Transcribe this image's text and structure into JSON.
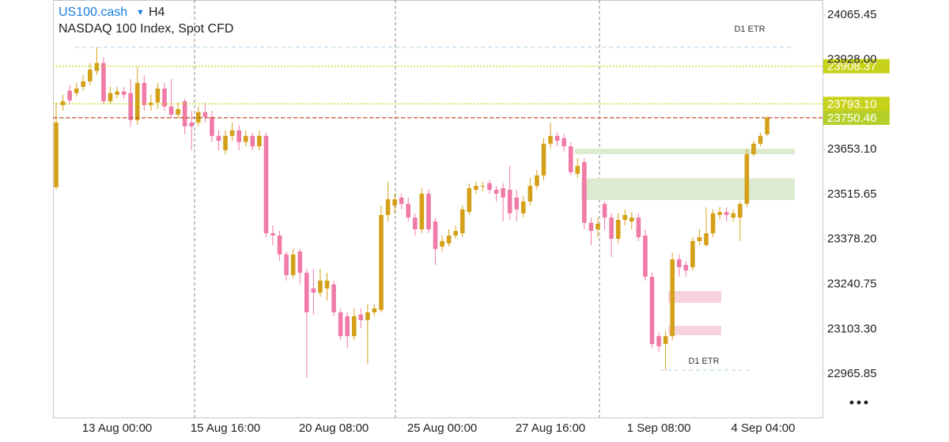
{
  "chart_data": {
    "type": "candlestick",
    "title": "US100.cash",
    "timeframe": "H4",
    "subtitle": "NASDAQ 100 Index, Spot CFD",
    "up_color": "#d4a017",
    "down_color": "#f07aa8",
    "ylim": [
      22833,
      24111
    ],
    "yticks": [
      {
        "value": 24065.45,
        "label": "24065.45"
      },
      {
        "value": 23928,
        "label": "23928.00"
      },
      {
        "value": 23653.1,
        "label": "23653.10"
      },
      23515.65,
      {
        "value": 23378.2,
        "label": "23378.20"
      },
      23240.75,
      {
        "value": 23103.3,
        "label": "23103.30"
      },
      22965.85
    ],
    "categories": [
      null,
      null,
      null,
      null,
      null,
      null,
      null,
      null,
      null,
      "13 Aug 00:00",
      null,
      null,
      null,
      null,
      null,
      null,
      null,
      null,
      null,
      null,
      null,
      null,
      null,
      null,
      null,
      "15 Aug 16:00",
      null,
      null,
      null,
      null,
      null,
      null,
      null,
      null,
      null,
      null,
      null,
      null,
      null,
      null,
      null,
      "20 Aug 08:00",
      null,
      null,
      null,
      null,
      null,
      null,
      null,
      null,
      null,
      null,
      null,
      null,
      null,
      null,
      null,
      "25 Aug 00:00",
      null,
      null,
      null,
      null,
      null,
      null,
      null,
      null,
      null,
      null,
      null,
      null,
      null,
      null,
      null,
      "27 Aug 16:00",
      null,
      null,
      null,
      null,
      null,
      null,
      null,
      null,
      null,
      null,
      null,
      null,
      null,
      null,
      null,
      "1 Sep 08:00",
      null,
      null,
      null,
      null,
      null,
      null,
      null,
      null,
      null,
      null,
      null,
      null,
      null,
      null,
      null,
      "4 Sep 04:00"
    ],
    "open": [
      23538,
      23789,
      23833,
      23826,
      23845,
      23862,
      23894,
      23918,
      23801,
      23821,
      23831,
      23826,
      23743,
      23857,
      23789,
      23797,
      23840,
      23785,
      23760,
      23801,
      23736,
      23736,
      23768,
      23753,
      23695,
      23651,
      23695,
      23712,
      23676,
      23695,
      23663,
      23695,
      23397,
      23390,
      23332,
      23269,
      23341,
      23276,
      23228,
      23215,
      23228,
      23240,
      23155,
      23143,
      23082,
      23148,
      23131,
      23155,
      23162,
      23453,
      23482,
      23506,
      23487,
      23445,
      23409,
      23518,
      23433,
      23356,
      23366,
      23390,
      23397,
      23462,
      23530,
      23540,
      23550,
      23530,
      23535,
      23530,
      23506,
      23458,
      23494,
      23542,
      23574,
      23671,
      23695,
      23688,
      23663,
      23579,
      23615,
      23429,
      23409,
      23487,
      23445,
      23380,
      23438,
      23433,
      23445,
      23390,
      23264,
      23082,
      23058,
      23082,
      23317,
      23300,
      23293,
      23373,
      23361,
      23397,
      23453,
      23462,
      23445,
      23445,
      23487,
      23639,
      23671,
      23700
    ],
    "high": [
      23797,
      23821,
      23850,
      23857,
      23881,
      23918,
      23966,
      23937,
      23845,
      23845,
      23845,
      23869,
      23906,
      23881,
      23821,
      23857,
      23857,
      23869,
      23797,
      23809,
      23772,
      23785,
      23797,
      23772,
      23712,
      23712,
      23736,
      23729,
      23712,
      23705,
      23712,
      23705,
      23421,
      23404,
      23341,
      23349,
      23349,
      23288,
      23288,
      23288,
      23276,
      23252,
      23167,
      23155,
      23167,
      23167,
      23179,
      23179,
      23482,
      23554,
      23518,
      23518,
      23506,
      23458,
      23535,
      23530,
      23445,
      23390,
      23409,
      23421,
      23482,
      23550,
      23554,
      23554,
      23559,
      23542,
      23550,
      23603,
      23530,
      23511,
      23567,
      23591,
      23688,
      23736,
      23705,
      23700,
      23676,
      23627,
      23627,
      23445,
      23445,
      23494,
      23458,
      23458,
      23470,
      23462,
      23458,
      23409,
      23276,
      23094,
      23099,
      23336,
      23332,
      23312,
      23385,
      23409,
      23477,
      23470,
      23477,
      23477,
      23470,
      23494,
      23656,
      23680,
      23705,
      23756
    ],
    "low": [
      23530,
      23772,
      23792,
      23816,
      23833,
      23850,
      23881,
      23792,
      23792,
      23809,
      23809,
      23724,
      23729,
      23772,
      23772,
      23777,
      23772,
      23748,
      23748,
      23700,
      23651,
      23724,
      23736,
      23676,
      23651,
      23639,
      23680,
      23651,
      23663,
      23651,
      23651,
      23385,
      23361,
      23312,
      23252,
      23259,
      23240,
      22954,
      23148,
      23203,
      23191,
      23143,
      23070,
      23046,
      23070,
      23106,
      22997,
      23143,
      23155,
      23433,
      23458,
      23470,
      23433,
      23390,
      23397,
      23397,
      23300,
      23341,
      23356,
      23380,
      23385,
      23453,
      23518,
      23525,
      23518,
      23494,
      23433,
      23438,
      23433,
      23445,
      23482,
      23530,
      23559,
      23656,
      23663,
      23647,
      23574,
      23567,
      23409,
      23361,
      23385,
      23409,
      23324,
      23366,
      23421,
      23409,
      23373,
      23252,
      23046,
      23034,
      22978,
      23070,
      23264,
      23264,
      23283,
      23361,
      23356,
      23385,
      23438,
      23433,
      23433,
      23373,
      23477,
      23632,
      23663,
      23695
    ],
    "close": [
      23736,
      23801,
      23804,
      23840,
      23862,
      23898,
      23918,
      23801,
      23826,
      23831,
      23821,
      23743,
      23857,
      23789,
      23797,
      23840,
      23785,
      23760,
      23777,
      23724,
      23724,
      23768,
      23753,
      23695,
      23680,
      23695,
      23712,
      23676,
      23695,
      23663,
      23695,
      23397,
      23390,
      23332,
      23269,
      23332,
      23276,
      23155,
      23215,
      23252,
      23252,
      23155,
      23082,
      23082,
      23143,
      23131,
      23155,
      23167,
      23453,
      23501,
      23501,
      23487,
      23445,
      23409,
      23518,
      23409,
      23349,
      23373,
      23390,
      23404,
      23470,
      23535,
      23542,
      23542,
      23530,
      23518,
      23506,
      23458,
      23470,
      23494,
      23542,
      23574,
      23671,
      23695,
      23680,
      23663,
      23584,
      23603,
      23429,
      23404,
      23426,
      23445,
      23380,
      23438,
      23453,
      23445,
      23385,
      23264,
      23058,
      23051,
      23082,
      23317,
      23293,
      23283,
      23373,
      23385,
      23397,
      23458,
      23462,
      23453,
      23458,
      23487,
      23639,
      23671,
      23695,
      23750
    ],
    "levels": [
      {
        "value": 23908.37,
        "color": "#c9d21a",
        "style": "dotted"
      },
      {
        "value": {
          "value": 23793.1,
          "label": "23793.10"
        },
        "color": "#c9d21a",
        "style": "dotted"
      },
      {
        "value": 23750.46,
        "color": "#b7cf2a",
        "line_color": "#c0392b",
        "style": "dashed"
      }
    ],
    "etr_lines": [
      {
        "label": "D1 ETR",
        "value": 23966
      },
      {
        "label": "D1 ETR",
        "value": 22978
      }
    ],
    "zones": [
      {
        "from": 23656,
        "to": 23639,
        "color": "#dcebd0"
      },
      {
        "from": 23565,
        "to": 23499,
        "color": "#dcebd0"
      },
      {
        "from": 23220,
        "to": 23184,
        "color": "#f7d3de"
      },
      {
        "from": 23114,
        "to": 23085,
        "color": "#f7d3de"
      }
    ]
  }
}
